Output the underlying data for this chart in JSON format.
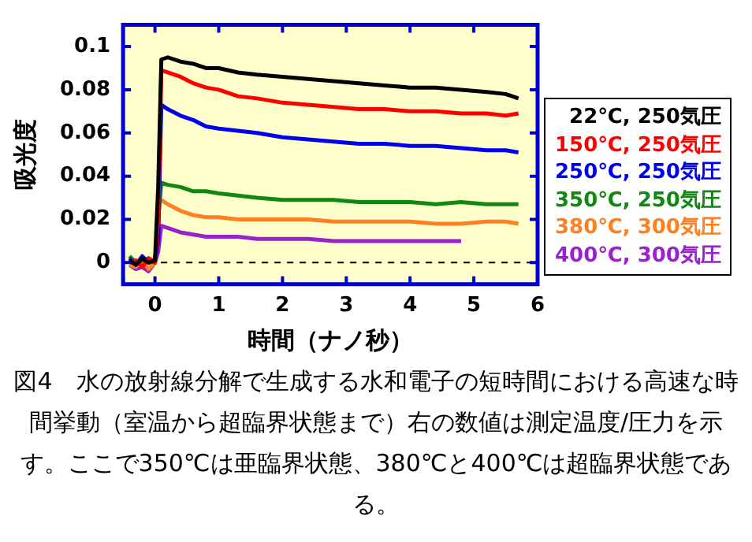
{
  "chart_data": {
    "type": "line",
    "xlabel": "時間（ナノ秒）",
    "ylabel": "吸光度",
    "annotations": [
      "図4　水の放射線分解で生成する水和電子の短時間における高速な時間挙動（室温から超臨界状態まで）右の数値は測定温度/圧力を示す。ここで350℃は亜臨界状態、380℃と400℃は超臨界状態である。"
    ],
    "xlim": [
      -0.5,
      6
    ],
    "xticks": [
      0,
      1,
      2,
      3,
      4,
      5,
      6
    ],
    "ylim": [
      -0.01,
      0.11
    ],
    "yticks": [
      0,
      0.02,
      0.04,
      0.06,
      0.08,
      0.1
    ],
    "grid": false,
    "legend": "right",
    "marker": "none",
    "line_style": "solid",
    "ref_lines": [
      {
        "axis": "y",
        "value": 0,
        "color": "#000000",
        "line_style": "dashed"
      }
    ],
    "series": [
      {
        "name": "22℃, 250気圧",
        "color": "#000000",
        "x": [
          -0.4,
          -0.3,
          -0.2,
          -0.1,
          0,
          0.05,
          0.1,
          0.2,
          0.4,
          0.6,
          0.8,
          1,
          1.3,
          1.6,
          2,
          2.4,
          2.8,
          3.2,
          3.6,
          4,
          4.4,
          4.8,
          5.2,
          5.5,
          5.7
        ],
        "values": [
          0.001,
          -0.001,
          0.002,
          0,
          0.001,
          0.035,
          0.094,
          0.095,
          0.093,
          0.092,
          0.09,
          0.09,
          0.088,
          0.087,
          0.086,
          0.085,
          0.084,
          0.083,
          0.082,
          0.081,
          0.081,
          0.08,
          0.079,
          0.078,
          0.076
        ]
      },
      {
        "name": "150℃, 250気圧",
        "color": "#ff0000",
        "x": [
          -0.4,
          -0.3,
          -0.2,
          -0.1,
          0,
          0.05,
          0.1,
          0.2,
          0.4,
          0.6,
          0.8,
          1,
          1.3,
          1.6,
          2,
          2.4,
          2.8,
          3.2,
          3.6,
          4,
          4.4,
          4.8,
          5.2,
          5.5,
          5.7
        ],
        "values": [
          0,
          0.001,
          -0.002,
          0.002,
          0,
          0.02,
          0.089,
          0.088,
          0.086,
          0.083,
          0.081,
          0.08,
          0.077,
          0.076,
          0.074,
          0.073,
          0.072,
          0.071,
          0.071,
          0.07,
          0.07,
          0.069,
          0.069,
          0.068,
          0.069
        ]
      },
      {
        "name": "250℃, 250気圧",
        "color": "#0000ee",
        "x": [
          -0.4,
          -0.3,
          -0.2,
          -0.1,
          0,
          0.05,
          0.1,
          0.2,
          0.4,
          0.6,
          0.8,
          1,
          1.3,
          1.6,
          2,
          2.4,
          2.8,
          3.2,
          3.6,
          4,
          4.4,
          4.8,
          5.2,
          5.5,
          5.7
        ],
        "values": [
          0.002,
          -0.001,
          0.003,
          0,
          0.001,
          0.01,
          0.073,
          0.071,
          0.068,
          0.066,
          0.063,
          0.062,
          0.061,
          0.06,
          0.058,
          0.057,
          0.056,
          0.055,
          0.055,
          0.054,
          0.054,
          0.053,
          0.052,
          0.052,
          0.051
        ]
      },
      {
        "name": "350℃, 250気圧",
        "color": "#118811",
        "x": [
          -0.4,
          -0.3,
          -0.2,
          -0.1,
          0,
          0.05,
          0.1,
          0.2,
          0.4,
          0.6,
          0.8,
          1,
          1.3,
          1.6,
          2,
          2.4,
          2.8,
          3.2,
          3.6,
          4,
          4.4,
          4.8,
          5.2,
          5.5,
          5.7
        ],
        "values": [
          0.003,
          0,
          0.001,
          0.002,
          0,
          0.02,
          0.037,
          0.036,
          0.035,
          0.033,
          0.033,
          0.032,
          0.031,
          0.03,
          0.029,
          0.029,
          0.029,
          0.028,
          0.028,
          0.028,
          0.027,
          0.028,
          0.027,
          0.027,
          0.027
        ]
      },
      {
        "name": "380℃, 300気圧",
        "color": "#ff8020",
        "x": [
          -0.4,
          -0.3,
          -0.2,
          -0.1,
          0,
          0.05,
          0.1,
          0.2,
          0.4,
          0.6,
          0.8,
          1,
          1.3,
          1.6,
          2,
          2.4,
          2.8,
          3.2,
          3.6,
          4,
          4.4,
          4.8,
          5.2,
          5.5,
          5.7
        ],
        "values": [
          -0.001,
          -0.002,
          0.001,
          -0.003,
          0,
          null,
          0.029,
          0.027,
          0.024,
          0.022,
          0.021,
          0.021,
          0.02,
          0.02,
          0.02,
          0.02,
          0.019,
          0.019,
          0.019,
          0.019,
          0.018,
          0.018,
          0.019,
          0.019,
          0.018
        ]
      },
      {
        "name": "400℃, 300気圧",
        "color": "#9922cc",
        "x": [
          -0.4,
          -0.3,
          -0.2,
          -0.1,
          0,
          0.05,
          0.1,
          0.2,
          0.4,
          0.6,
          0.8,
          1,
          1.3,
          1.6,
          2,
          2.4,
          2.8,
          3.2,
          3.6,
          4,
          4.4,
          4.8
        ],
        "values": [
          -0.001,
          -0.003,
          -0.002,
          -0.004,
          0,
          0.005,
          0.017,
          0.016,
          0.014,
          0.013,
          0.012,
          0.012,
          0.012,
          0.011,
          0.011,
          0.011,
          0.01,
          0.01,
          0.01,
          0.01,
          0.01,
          0.01
        ]
      }
    ]
  }
}
